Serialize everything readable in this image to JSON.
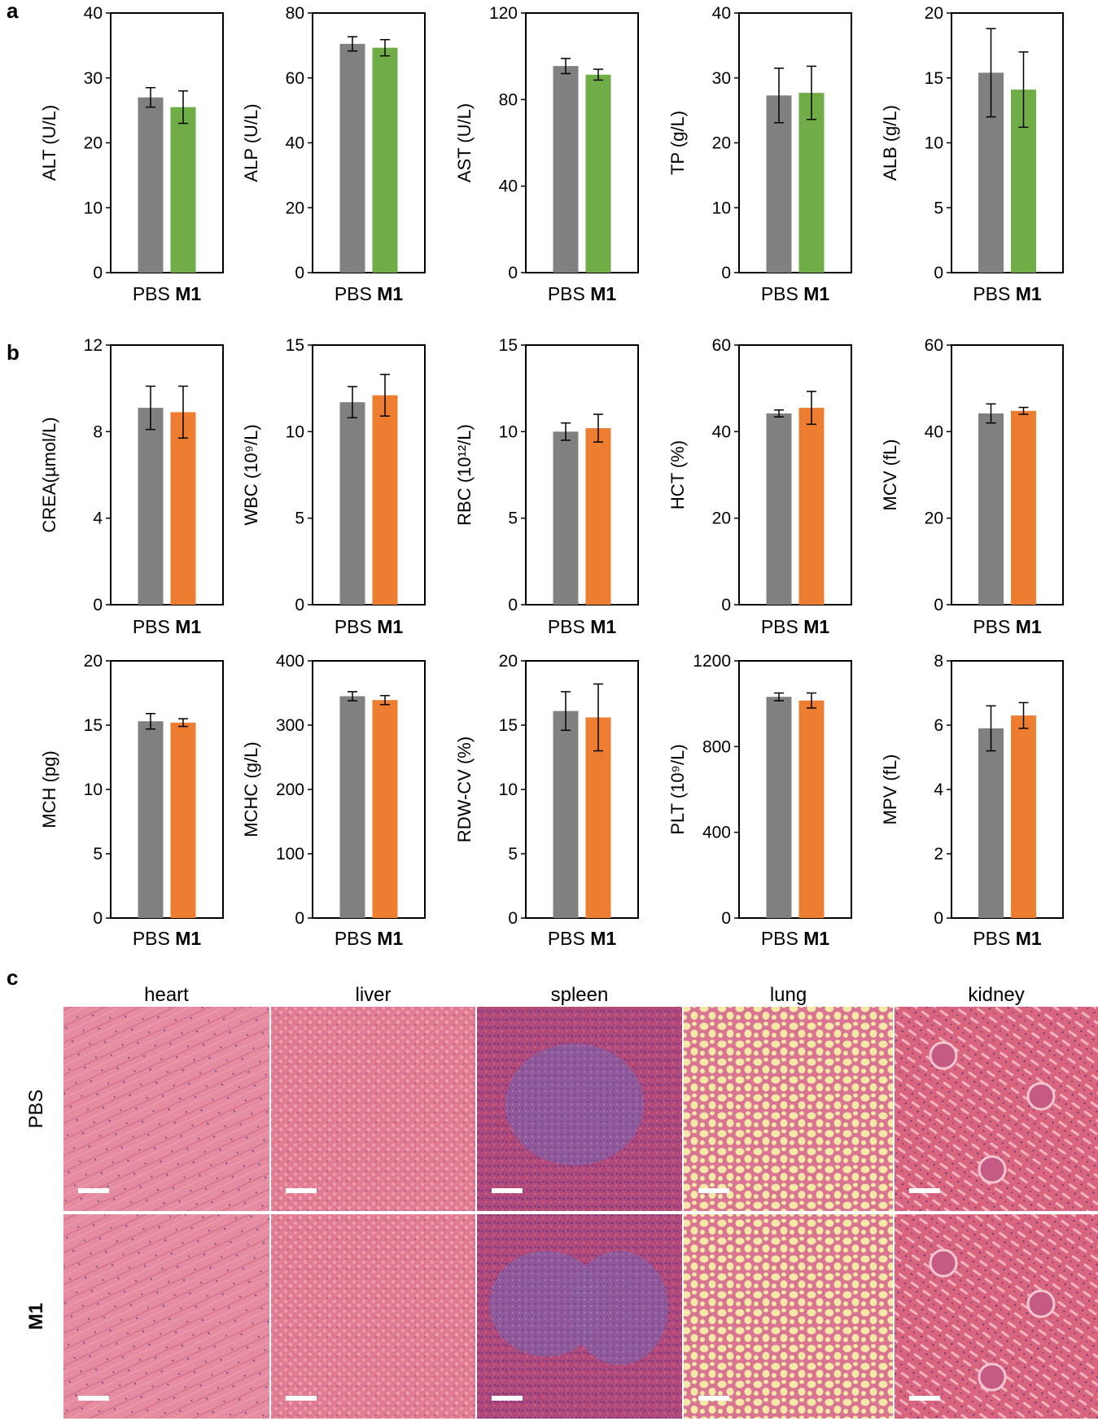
{
  "panel_labels": {
    "a": "a",
    "b": "b",
    "c": "c"
  },
  "colors": {
    "pbs": "#808080",
    "m1_a": "#70ad47",
    "m1_b": "#ed7d31",
    "he_pink": "#e0788f",
    "lung_bg": "#f6e8a6",
    "spleen_purple": "#8a3f8f"
  },
  "chart_data": [
    {
      "type": "bar",
      "panel": "a",
      "ylabel": "ALT (U/L)",
      "ylim": [
        0,
        40
      ],
      "yticks": [
        0,
        10,
        20,
        30,
        40
      ],
      "categories": [
        "PBS",
        "M1"
      ],
      "values": [
        27.0,
        25.5
      ],
      "errors": [
        1.5,
        2.5
      ]
    },
    {
      "type": "bar",
      "panel": "a",
      "ylabel": "ALP (U/L)",
      "ylim": [
        0,
        80
      ],
      "yticks": [
        0,
        20,
        40,
        60,
        80
      ],
      "categories": [
        "PBS",
        "M1"
      ],
      "values": [
        70.5,
        69.3
      ],
      "errors": [
        2.2,
        2.5
      ]
    },
    {
      "type": "bar",
      "panel": "a",
      "ylabel": "AST (U/L)",
      "ylim": [
        0,
        120
      ],
      "yticks": [
        0,
        40,
        80,
        120
      ],
      "categories": [
        "PBS",
        "M1"
      ],
      "values": [
        95.5,
        91.5
      ],
      "errors": [
        3.5,
        2.5
      ]
    },
    {
      "type": "bar",
      "panel": "a",
      "ylabel": "TP (g/L)",
      "ylim": [
        0,
        40
      ],
      "yticks": [
        0,
        10,
        20,
        30,
        40
      ],
      "categories": [
        "PBS",
        "M1"
      ],
      "values": [
        27.3,
        27.7
      ],
      "errors": [
        4.2,
        4.1
      ]
    },
    {
      "type": "bar",
      "panel": "a",
      "ylabel": "ALB (g/L)",
      "ylim": [
        0,
        20
      ],
      "yticks": [
        0,
        5,
        10,
        15,
        20
      ],
      "categories": [
        "PBS",
        "M1"
      ],
      "values": [
        15.4,
        14.1
      ],
      "errors": [
        3.4,
        2.9
      ]
    },
    {
      "type": "bar",
      "panel": "b",
      "ylabel": "CREA(µmol/L)",
      "ylim": [
        0,
        12
      ],
      "yticks": [
        0,
        4,
        8,
        12
      ],
      "categories": [
        "PBS",
        "M1"
      ],
      "values": [
        9.1,
        8.9
      ],
      "errors": [
        1.0,
        1.2
      ]
    },
    {
      "type": "bar",
      "panel": "b",
      "ylabel": "WBC (10⁹/L)",
      "ylim": [
        0,
        15
      ],
      "yticks": [
        0,
        5,
        10,
        15
      ],
      "categories": [
        "PBS",
        "M1"
      ],
      "values": [
        11.7,
        12.1
      ],
      "errors": [
        0.9,
        1.2
      ]
    },
    {
      "type": "bar",
      "panel": "b",
      "ylabel": "RBC (10¹²/L)",
      "ylim": [
        0,
        15
      ],
      "yticks": [
        0,
        5,
        10,
        15
      ],
      "categories": [
        "PBS",
        "M1"
      ],
      "values": [
        10.0,
        10.2
      ],
      "errors": [
        0.5,
        0.8
      ]
    },
    {
      "type": "bar",
      "panel": "b",
      "ylabel": "HCT (%)",
      "ylim": [
        0,
        60
      ],
      "yticks": [
        0,
        20,
        40,
        60
      ],
      "categories": [
        "PBS",
        "M1"
      ],
      "values": [
        44.2,
        45.5
      ],
      "errors": [
        0.8,
        3.8
      ]
    },
    {
      "type": "bar",
      "panel": "b",
      "ylabel": "MCV (fL)",
      "ylim": [
        0,
        60
      ],
      "yticks": [
        0,
        20,
        40,
        60
      ],
      "categories": [
        "PBS",
        "M1"
      ],
      "values": [
        44.2,
        44.8
      ],
      "errors": [
        2.2,
        0.8
      ]
    },
    {
      "type": "bar",
      "panel": "b",
      "ylabel": "MCH (pg)",
      "ylim": [
        0,
        20
      ],
      "yticks": [
        0,
        5,
        10,
        15,
        20
      ],
      "categories": [
        "PBS",
        "M1"
      ],
      "values": [
        15.3,
        15.2
      ],
      "errors": [
        0.6,
        0.3
      ]
    },
    {
      "type": "bar",
      "panel": "b",
      "ylabel": "MCHC (g/L)",
      "ylim": [
        0,
        400
      ],
      "yticks": [
        0,
        100,
        200,
        300,
        400
      ],
      "categories": [
        "PBS",
        "M1"
      ],
      "values": [
        345,
        339
      ],
      "errors": [
        7,
        7
      ]
    },
    {
      "type": "bar",
      "panel": "b",
      "ylabel": "RDW-CV (%)",
      "ylim": [
        0,
        20
      ],
      "yticks": [
        0,
        5,
        10,
        15,
        20
      ],
      "categories": [
        "PBS",
        "M1"
      ],
      "values": [
        16.1,
        15.6
      ],
      "errors": [
        1.5,
        2.6
      ]
    },
    {
      "type": "bar",
      "panel": "b",
      "ylabel": "PLT (10⁹/L)",
      "ylim": [
        0,
        1200
      ],
      "yticks": [
        0,
        400,
        800,
        1200
      ],
      "categories": [
        "PBS",
        "M1"
      ],
      "values": [
        1032,
        1015
      ],
      "errors": [
        18,
        35
      ]
    },
    {
      "type": "bar",
      "panel": "b",
      "ylabel": "MPV (fL)",
      "ylim": [
        0,
        8
      ],
      "yticks": [
        0,
        2,
        4,
        6,
        8
      ],
      "categories": [
        "PBS",
        "M1"
      ],
      "values": [
        5.9,
        6.3
      ],
      "errors": [
        0.7,
        0.4
      ]
    }
  ],
  "histology": {
    "columns": [
      "heart",
      "liver",
      "spleen",
      "lung",
      "kidney"
    ],
    "rows": [
      "PBS",
      "M1"
    ]
  }
}
